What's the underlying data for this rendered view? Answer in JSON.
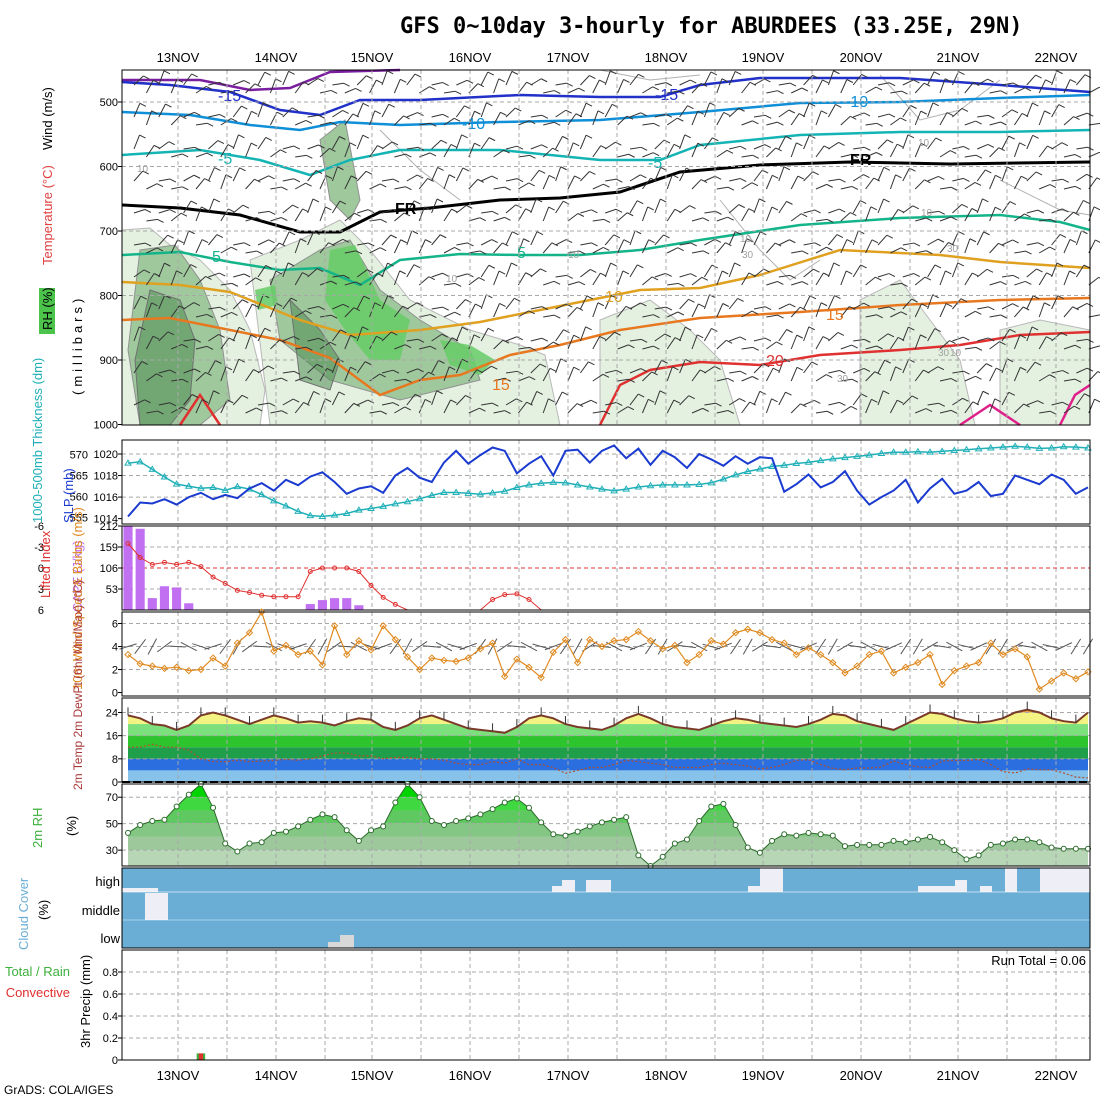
{
  "title": "GFS 0~10day 3-hourly for ABURDEES (33.25E, 29N)",
  "credit": "GrADS: COLA/IGES",
  "dates": [
    "13NOV",
    "14NOV",
    "15NOV",
    "16NOV",
    "17NOV",
    "18NOV",
    "19NOV",
    "20NOV",
    "21NOV",
    "22NOV"
  ],
  "colors": {
    "rh_dark": "#4c8b52",
    "rh_mid": "#9fc99d",
    "rh_light": "#e4f1e1",
    "rh_bright": "#66cc66",
    "temp_purple": "#7a1ea0",
    "temp_blue": "#2030c8",
    "temp_lightblue": "#0e8fd8",
    "temp_cyan": "#14b4b4",
    "temp_teal": "#14b48a",
    "temp_orange1": "#e0a020",
    "temp_orange2": "#e87820",
    "temp_red": "#e03030",
    "temp_magenta": "#e0208a",
    "slp": "#1a3ad0",
    "thickness": "#20b0b8",
    "cape": "#c070f0",
    "lifted": "#e03030",
    "wind10m": "#e08a20",
    "rh2m": "#4cbf4c",
    "cloud": "#6aaed6",
    "temp_yellow": "#f3f383",
    "temp_orange": "#e5a040",
    "temp_green": "#2ec42e",
    "temp_blue2": "#2a6ee0"
  },
  "chart_data": [
    {
      "type": "contour",
      "panel": "upper-air",
      "ylabel_wind": "Wind (m/s)",
      "ylabel_temp": "Temperature (°C)",
      "ylabel_rh": "RH (%)",
      "ylabel_units": "(millibars)",
      "y_ticks": [
        "500",
        "600",
        "700",
        "800",
        "900",
        "1000"
      ],
      "contour_labels": [
        "-15",
        "-15",
        "-10",
        "-10",
        "-5",
        "-5",
        "FR",
        "FR",
        "5",
        "5",
        "10",
        "15",
        "15",
        "20",
        "10",
        "10",
        "30",
        "10",
        "30",
        "10",
        "30",
        "10",
        "10",
        "30",
        "10"
      ],
      "isotherms_c": [
        -20,
        -15,
        -10,
        -5,
        0,
        5,
        10,
        15,
        20
      ]
    },
    {
      "type": "line",
      "panel": "slp-thickness",
      "ylabel_left": "1000-500mb Thickness (dm)",
      "ylabel_right": "SLP (mb)",
      "thickness_ticks": [
        "570",
        "565",
        "560",
        "555"
      ],
      "slp_ticks": [
        "1020",
        "1018",
        "1016",
        "1014"
      ],
      "thickness_ylim": [
        553.5,
        573.5
      ],
      "slp_ylim": [
        1013.5,
        1021.3
      ],
      "slp_values": [
        1014.2,
        1015.5,
        1015.4,
        1015.8,
        1015.3,
        1016.0,
        1016.4,
        1015.8,
        1016.2,
        1015.9,
        1016.8,
        1017.3,
        1016.6,
        1017.6,
        1017.1,
        1017.9,
        1018.3,
        1017.4,
        1016.3,
        1016.8,
        1017.0,
        1016.4,
        1018.0,
        1018.7,
        1017.8,
        1017.4,
        1019.2,
        1020.3,
        1019.1,
        1019.9,
        1020.6,
        1020.3,
        1018.2,
        1019.1,
        1019.8,
        1018.0,
        1020.3,
        1020.4,
        1019.2,
        1020.3,
        1020.8,
        1019.6,
        1020.5,
        1019.0,
        1020.3,
        1019.7,
        1018.7,
        1020.0,
        1019.5,
        1018.9,
        1019.8,
        1019.1,
        1019.7,
        1019.6,
        1016.5,
        1017.2,
        1018.1,
        1016.9,
        1017.4,
        1018.4,
        1016.6,
        1015.3,
        1016.0,
        1016.6,
        1017.6,
        1015.5,
        1016.8,
        1017.7,
        1016.3,
        1016.6,
        1017.4,
        1016.1,
        1016.3,
        1018.0,
        1017.6,
        1017.2,
        1018.1,
        1017.6,
        1016.3,
        1016.9
      ],
      "thickness_values": [
        568.0,
        568.3,
        566.5,
        564.7,
        563.0,
        562.5,
        562.0,
        562.2,
        561.5,
        562.4,
        561.8,
        560.5,
        559.0,
        557.8,
        556.5,
        555.5,
        555.3,
        555.6,
        556.0,
        556.8,
        557.2,
        557.7,
        558.3,
        558.8,
        559.5,
        560.3,
        561.0,
        561.0,
        560.8,
        560.6,
        560.9,
        561.3,
        562.2,
        562.8,
        563.2,
        563.4,
        563.3,
        562.8,
        562.3,
        561.8,
        561.4,
        561.8,
        562.3,
        562.6,
        562.8,
        562.8,
        562.8,
        562.9,
        563.3,
        564.2,
        565.2,
        566.0,
        566.6,
        567.2,
        567.5,
        567.9,
        568.2,
        568.6,
        569.0,
        569.3,
        569.6,
        569.9,
        570.3,
        570.6,
        570.6,
        570.7,
        570.6,
        570.8,
        571.0,
        571.2,
        571.4,
        571.6,
        571.8,
        572.0,
        571.8,
        571.5,
        571.6,
        571.9,
        571.8,
        571.6
      ]
    },
    {
      "type": "bar+line",
      "panel": "cape-lifted-index",
      "ylabel_left": "Lifted Index",
      "ylabel_right": "CAPE (J/kg)",
      "li_ticks": [
        "-6",
        "-3",
        "0",
        "3",
        "6"
      ],
      "cape_ticks": [
        "212",
        "159",
        "106",
        "53"
      ],
      "li_ylim": [
        -6,
        6
      ],
      "cape_ylim": [
        0,
        212
      ],
      "cape_values": [
        212,
        205,
        30,
        60,
        57,
        17,
        0,
        0,
        0,
        0,
        0,
        0,
        0,
        0,
        0,
        15,
        25,
        30,
        30,
        12,
        0,
        0,
        0,
        0,
        0,
        0,
        0,
        0,
        0,
        0,
        0,
        0,
        0,
        0,
        0,
        0,
        0,
        0,
        0,
        0,
        0,
        0,
        0,
        0,
        0,
        0,
        0,
        0,
        0,
        0,
        0,
        0,
        0,
        0,
        0,
        0,
        0,
        0,
        0,
        0,
        0,
        0,
        0,
        0,
        0,
        0,
        0,
        0,
        0,
        0,
        0,
        0,
        0,
        0,
        0,
        0,
        0,
        0,
        0,
        0
      ],
      "li_values": [
        -3.5,
        -1.5,
        -0.5,
        -0.8,
        -0.5,
        -0.8,
        -0.2,
        1.3,
        2.2,
        3.2,
        3.5,
        3.9,
        4.1,
        4.1,
        4.1,
        0.5,
        0,
        0,
        0,
        0.5,
        2.5,
        4.2,
        5.2,
        6.0,
        6.0,
        6.0,
        6.0,
        6.0,
        6.0,
        6.0,
        4.5,
        3.8,
        3.7,
        4.5,
        6.0,
        6.0,
        6.0,
        6.0,
        6.0,
        6.0,
        6.0,
        6.0,
        6.0,
        6.0,
        6.0,
        6.0,
        6.0,
        6.0,
        6.0,
        6.0,
        6.0,
        6.0,
        6.0,
        6.0,
        6.0,
        6.0,
        6.0,
        6.0,
        6.0,
        6.0,
        6.0,
        6.0,
        6.0,
        6.0,
        6.0,
        6.0,
        6.0,
        6.0,
        6.0,
        6.0,
        6.0,
        6.0,
        6.0,
        6.0,
        6.0,
        6.0,
        6.0,
        6.0,
        6.0,
        6.0
      ]
    },
    {
      "type": "line",
      "panel": "10m-wind",
      "ylabel": "10m Wind Speed & Barbs (m/s)",
      "y_ticks": [
        "6",
        "4",
        "2",
        "0"
      ],
      "ylim": [
        -0.3,
        7
      ],
      "values": [
        3.3,
        2.5,
        2.3,
        2.1,
        2.2,
        1.9,
        2.0,
        3.0,
        2.3,
        4.3,
        5.2,
        7.0,
        3.6,
        4.1,
        3.3,
        3.6,
        2.4,
        5.8,
        3.3,
        4.5,
        3.7,
        5.8,
        4.6,
        3.1,
        2.0,
        3.0,
        2.8,
        2.7,
        3.0,
        3.8,
        4.3,
        1.4,
        2.9,
        2.2,
        1.3,
        3.5,
        4.6,
        2.6,
        4.6,
        4.0,
        4.5,
        4.6,
        5.3,
        4.5,
        3.8,
        4.1,
        2.6,
        3.3,
        4.5,
        4.2,
        5.2,
        5.5,
        5.2,
        4.6,
        4.3,
        3.3,
        3.9,
        3.3,
        2.6,
        1.7,
        2.3,
        3.3,
        3.6,
        1.7,
        2.2,
        2.6,
        3.3,
        0.7,
        1.9,
        2.3,
        2.6,
        4.3,
        3.3,
        3.8,
        3.1,
        0.3,
        1.0,
        1.7,
        1.2,
        1.8
      ]
    },
    {
      "type": "area",
      "panel": "2m-temp",
      "ylabel": "2m Temp 2m DewPt (6hr Min/Max) (°C)",
      "y_ticks": [
        "24",
        "16",
        "8",
        "0"
      ],
      "ylim": [
        0,
        29
      ],
      "temp_values": [
        23,
        22,
        20,
        19.5,
        18,
        19.5,
        23,
        24,
        23,
        21.5,
        20,
        21.5,
        23,
        22,
        20.5,
        21,
        20.5,
        19.5,
        21,
        22,
        21.5,
        19,
        18,
        19.5,
        22,
        23,
        21.5,
        20,
        18.5,
        18,
        17.5,
        17,
        19,
        22,
        23,
        22,
        20,
        19,
        18.5,
        18,
        19.5,
        22,
        23.5,
        22,
        20,
        19,
        18.5,
        18,
        19.5,
        21,
        22,
        21.5,
        20.5,
        20,
        19.5,
        19,
        20,
        21.5,
        23.5,
        23,
        21,
        20,
        19,
        18,
        20,
        22,
        24,
        23.5,
        22,
        21,
        20.5,
        21,
        22,
        24,
        25,
        24,
        22,
        21,
        20.5,
        24
      ],
      "dew_values": [
        12,
        12,
        13,
        12,
        12,
        11,
        8,
        7,
        7,
        7.5,
        7,
        7.2,
        7.5,
        7.8,
        7.5,
        8,
        9,
        10,
        10,
        9,
        9,
        8,
        8.5,
        8.5,
        8,
        8,
        7.5,
        6.5,
        6,
        6,
        7,
        6.5,
        8,
        6,
        6,
        5,
        3,
        4,
        5,
        5,
        6,
        7.5,
        7,
        6.5,
        6,
        5,
        5,
        5,
        6,
        6.5,
        6,
        5.5,
        4.5,
        5,
        6,
        7.5,
        7.7,
        6,
        4.7,
        4.2,
        4.9,
        4.8,
        5.2,
        7.3,
        6,
        5.2,
        5,
        7.2,
        7.5,
        7.4,
        7.8,
        6,
        3.6,
        3.1,
        4.5,
        4.2,
        4.2,
        3.1,
        1.7,
        1.4
      ]
    },
    {
      "type": "area",
      "panel": "2m-rh",
      "ylabel": "2m RH",
      "yunit": "(%)",
      "y_ticks": [
        "70",
        "50",
        "30"
      ],
      "ylim": [
        18,
        80
      ],
      "values": [
        43,
        49,
        52,
        53,
        63,
        72,
        80,
        62,
        35,
        29,
        35,
        36,
        43,
        44,
        48,
        53,
        57,
        55,
        45,
        37,
        45,
        48,
        66,
        80,
        70,
        52,
        49,
        52,
        54,
        57,
        61,
        66,
        69,
        62,
        51,
        42,
        41,
        44,
        48,
        51,
        53,
        55,
        26,
        18,
        25,
        35,
        38,
        52,
        63,
        65,
        49,
        32,
        28,
        37,
        42,
        41,
        43,
        42,
        41,
        33,
        34,
        34,
        34,
        37,
        36,
        38,
        40,
        36,
        30,
        23,
        26,
        34,
        35,
        38,
        38,
        36,
        32,
        31,
        31,
        31
      ]
    },
    {
      "type": "area",
      "panel": "cloud-cover",
      "ylabel": "Cloud Cover",
      "yunit": "(%)",
      "levels": [
        "high",
        "middle",
        "low"
      ]
    },
    {
      "type": "bar",
      "panel": "precip",
      "ylabel_total": "Total / Rain",
      "ylabel_conv": "Convective",
      "ylabel": "3hr Precip (mm)",
      "y_ticks": [
        "0.8",
        "0.6",
        "0.4",
        "0.2",
        "0"
      ],
      "ylim": [
        0,
        1.0
      ],
      "run_total_label": "Run Total = 0.06",
      "values": [
        0,
        0,
        0,
        0,
        0,
        0,
        0.06,
        0,
        0,
        0,
        0,
        0,
        0,
        0,
        0,
        0,
        0,
        0,
        0,
        0,
        0,
        0,
        0,
        0,
        0,
        0,
        0,
        0,
        0,
        0,
        0,
        0,
        0,
        0,
        0,
        0,
        0,
        0,
        0,
        0,
        0,
        0,
        0,
        0,
        0,
        0,
        0,
        0,
        0,
        0,
        0,
        0,
        0,
        0,
        0,
        0,
        0,
        0,
        0,
        0,
        0,
        0,
        0,
        0,
        0,
        0,
        0,
        0,
        0,
        0,
        0,
        0,
        0,
        0,
        0,
        0,
        0,
        0,
        0,
        0
      ]
    }
  ]
}
